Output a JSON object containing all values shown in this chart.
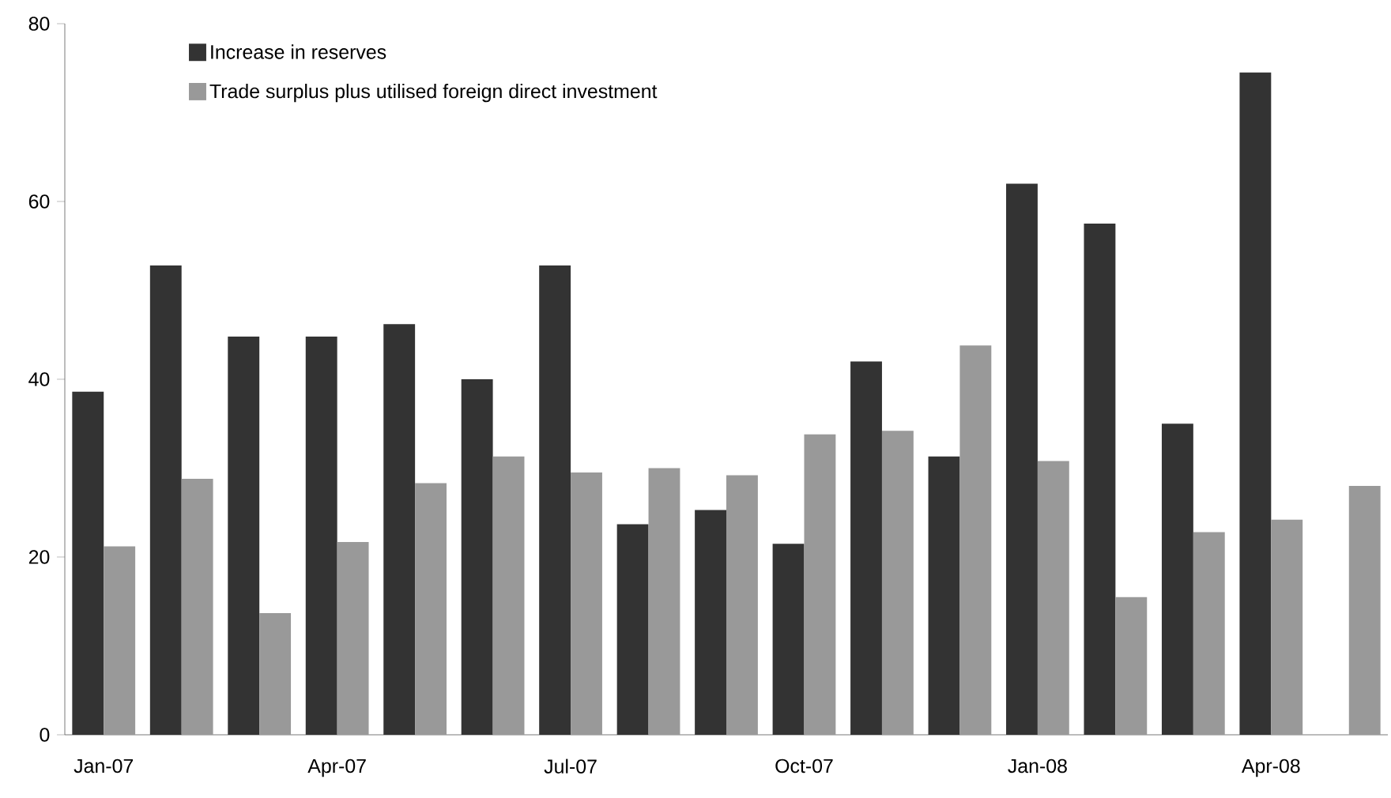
{
  "chart_data": {
    "type": "bar",
    "categories": [
      "Jan-07",
      null,
      null,
      "Apr-07",
      null,
      null,
      "Jul-07",
      null,
      null,
      "Oct-07",
      null,
      null,
      "Jan-08",
      null,
      null,
      "Apr-08",
      null
    ],
    "series": [
      {
        "name": "Increase in reserves",
        "color": "#333333",
        "values": [
          38.6,
          52.8,
          44.8,
          44.8,
          46.2,
          40,
          52.8,
          23.7,
          25.3,
          21.5,
          42,
          31.3,
          62,
          57.5,
          35,
          74.5,
          null
        ]
      },
      {
        "name": "Trade surplus plus utilised foreign direct investment",
        "color": "#999999",
        "values": [
          21.2,
          28.8,
          13.7,
          21.7,
          28.3,
          31.3,
          29.5,
          30,
          29.2,
          33.8,
          34.2,
          43.8,
          30.8,
          15.5,
          22.8,
          24.2,
          28
        ]
      }
    ],
    "ylim": [
      0,
      80
    ],
    "yticks": [
      0,
      20,
      40,
      60,
      80
    ],
    "legend": "top left",
    "grid": false
  }
}
